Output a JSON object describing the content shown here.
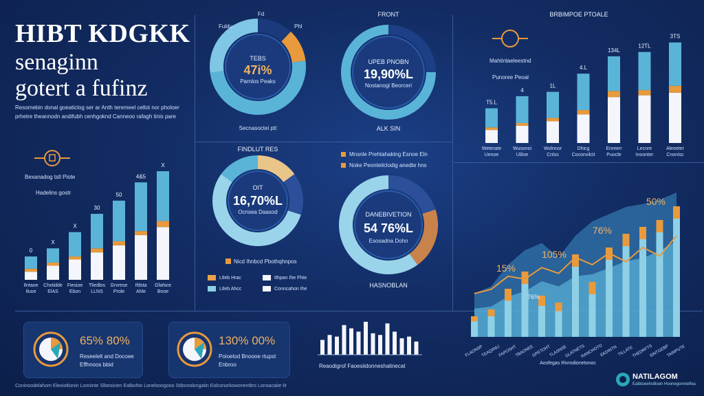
{
  "header": {
    "title": "HIBT KDGKK",
    "subtitle_line1": "senaginn",
    "subtitle_line2": "gotert a fufinz",
    "blurb": "Resomebin donal goeaticlog ser ar Anth teremeel cellot nor pholoer prhetre theannodn andifubh cenhgoknd Canneoo rafagh tinis pare"
  },
  "left_bar_panel": {
    "legend_title": "Bexanadog tstl Piote",
    "legend_sub": "Hadelins gostr",
    "top_labels": [
      "0",
      "X",
      "X",
      "30",
      "50",
      "4&5",
      "X"
    ],
    "bottom_labels": [
      "Ilntaoe Iluoe",
      "Chxtidde ElAS",
      "Fiesioe Ebon",
      "Tliedlos LLNS",
      "Grvrese Prole",
      "Ifdsta Ahle",
      "Gfahice Bnoe"
    ]
  },
  "donut_top1": {
    "tag_left": "Fuldu",
    "tag_top": "Fd",
    "tag_right": "Phl",
    "label": "TEBS",
    "value": "47i%",
    "sub": "Parnlos Peaks",
    "footer": "Secnasoctei ptt"
  },
  "donut_top2": {
    "heading": "FRONT",
    "label": "UPEB PNOBN",
    "value": "19,90%L",
    "sub": "Nostanogi Beorceri",
    "footer": "ALK SIN"
  },
  "donut_mid1": {
    "heading": "FINDLUT RES",
    "label": "OIT",
    "value": "16,70%L",
    "sub": "Ocnsea Daasod",
    "legend_top": "Nicd Ihnbcd Pbothqhnpos",
    "legend": [
      {
        "label": "Ltleb Hrac",
        "color": "#e9a24a"
      },
      {
        "label": "Ithpan Ihe Fhte",
        "color": "#f4f6fb"
      },
      {
        "label": "Ltleb Ahcc",
        "color": "#8fd0e6"
      },
      {
        "label": "Conncahon Ihe",
        "color": "#f4f6fb"
      }
    ]
  },
  "donut_mid2": {
    "legend": [
      "Mnsnle Prehtahaking Esnoe Eln",
      "Noke Peonteilclodig anedte hns"
    ],
    "label": "DANEBIVETION",
    "value": "54 76%L",
    "sub": "Esosadna Dohn",
    "footer": "HASNOBLAN"
  },
  "right_bars": {
    "header": "BRBIMPOE PTOALE",
    "legend_title": "Mahtinlaeleestnd",
    "legend_sub": "Punoree Peoal",
    "top_labels": [
      "T5.L",
      "4",
      "1L",
      "4.L",
      "134L",
      "12TL",
      "3TS"
    ],
    "bottom_labels": [
      "Weterate Uenoe",
      "Wusonoi Uliloe",
      "Wolnnor Cnlss",
      "Dhicg Coconvilcit",
      "Enreerr Puocle",
      "Lecnre Inoonter",
      "Aleeeter Cnonisc"
    ]
  },
  "combo_chart": {
    "labels": [
      "15%",
      "105%",
      "76%",
      "50%",
      "76%"
    ],
    "x_labels": [
      "FLAONSP",
      "TEAQIINLI",
      "FAPOSHT",
      "TBAONEE",
      "GPETOHT",
      "TLASNSE",
      "GLATNETS",
      "RANCHOTO",
      "EKDINTN",
      "TILLATE",
      "THEDRFTS",
      "SINTGEBP",
      "TAINPUTE"
    ],
    "footer": "Aosfegas Rivrodionetonoc"
  },
  "bottom": {
    "card1_value": "65% 80%",
    "card1_desc1": "Reseelelt and Docoee",
    "card1_desc2": "Effhnoos bbid",
    "card2_value": "130% 00%",
    "card2_desc1": "Poioelod Bnoooe rtupst",
    "card2_desc2": "Enbroo",
    "mini_caption": "Reaodigrof Faoesiidonneshalinecat",
    "footer_text": "Coninoodelahom Eleoioltionin Lonninte Slbeoicien Ealbohto Lonelooogooo Stibonolongatin Eolconorkowonentbrs Lonoacaite Ilr"
  },
  "brand": {
    "name": "NATILAGOM",
    "tagline": "Ealbtoeelndiloen Hoonegonmelfea"
  },
  "colors": {
    "teal": "#5ab4d8",
    "navy": "#1a3a7c",
    "orange": "#e99a3c",
    "white": "#f4f6fb",
    "light": "#9ad4ea",
    "bg": "#122c63"
  },
  "chart_data": [
    {
      "type": "bar",
      "categories": [
        "Ilntaoe Iluoe",
        "Chxtidde ElAS",
        "Fiesioe Ebon",
        "Tliedlos LLNS",
        "Grvrese Prole",
        "Ifdsta Ahle",
        "Gfahice Bnoe"
      ],
      "series": [
        {
          "values": [
            12,
            14,
            24,
            34,
            40,
            48,
            49
          ]
        },
        {
          "values": [
            3,
            3,
            3,
            4,
            4,
            4,
            6
          ]
        },
        {
          "values": [
            8,
            14,
            20,
            27,
            34,
            44,
            52
          ]
        }
      ]
    },
    {
      "type": "bar",
      "categories": [
        "Weterate Uenoe",
        "Wusonoi Uliloe",
        "Wolnnor Cnlss",
        "Dhicg Coconvilcit",
        "Enreerr Puocle",
        "Lecnre Inoonter",
        "Aleeeter Cnonisc"
      ],
      "series": [
        {
          "values": [
            22,
            31,
            30,
            42,
            40,
            44,
            50
          ]
        },
        {
          "values": [
            3,
            3,
            4,
            5,
            7,
            6,
            8
          ]
        },
        {
          "values": [
            15,
            20,
            25,
            33,
            53,
            55,
            58
          ]
        }
      ]
    },
    {
      "type": "pie",
      "values": [
        12,
        11,
        50,
        27
      ]
    },
    {
      "type": "pie",
      "values": [
        25,
        75
      ]
    },
    {
      "type": "pie",
      "values": [
        15,
        15,
        55,
        15
      ]
    },
    {
      "type": "pie",
      "values": [
        20,
        20,
        60
      ]
    },
    {
      "type": "bar",
      "categories": [
        "1",
        "2",
        "3",
        "4",
        "5",
        "6",
        "7",
        "8",
        "9",
        "10",
        "11",
        "12",
        "13",
        "14"
      ],
      "values": [
        45,
        60,
        55,
        90,
        80,
        70,
        100,
        65,
        60,
        95,
        70,
        50,
        55,
        40
      ]
    },
    {
      "type": "bar",
      "categories": [
        "FLAONSP",
        "TEAQIINLI",
        "FAPOSHT",
        "TBAONEE",
        "GPETOHT",
        "TLASNSE",
        "GLATNETS",
        "RANCHOTO",
        "EKDINTN",
        "TILLATE",
        "THEDRFTS",
        "SINTGEBP",
        "TAINPUTE"
      ],
      "series": [
        {
          "values": [
            28,
            30,
            40,
            45,
            55,
            50,
            60,
            62,
            68,
            75,
            78,
            85,
            95
          ]
        },
        {
          "values": [
            30,
            35,
            50,
            60,
            65,
            55,
            70,
            80,
            85,
            90,
            92,
            95,
            100
          ]
        }
      ]
    },
    {
      "type": "line",
      "values": [
        30,
        33,
        42,
        40,
        48,
        44,
        55,
        50,
        58,
        52,
        62,
        56,
        70
      ]
    }
  ]
}
